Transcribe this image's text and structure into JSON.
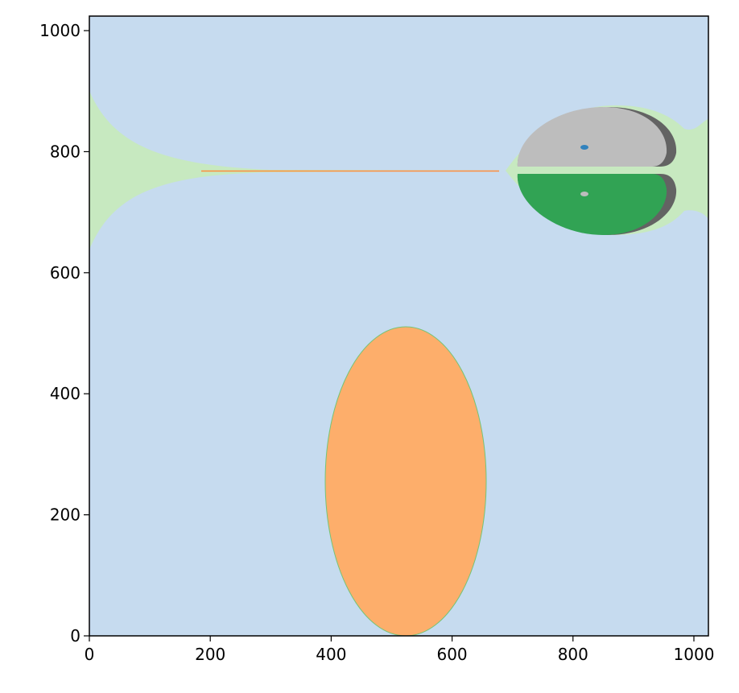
{
  "chart_data": {
    "type": "image",
    "xlim": [
      0,
      1024
    ],
    "ylim": [
      0,
      1024
    ],
    "xticks": [
      0,
      200,
      400,
      600,
      800,
      1000
    ],
    "yticks": [
      0,
      200,
      400,
      600,
      800,
      1000
    ]
  }
}
